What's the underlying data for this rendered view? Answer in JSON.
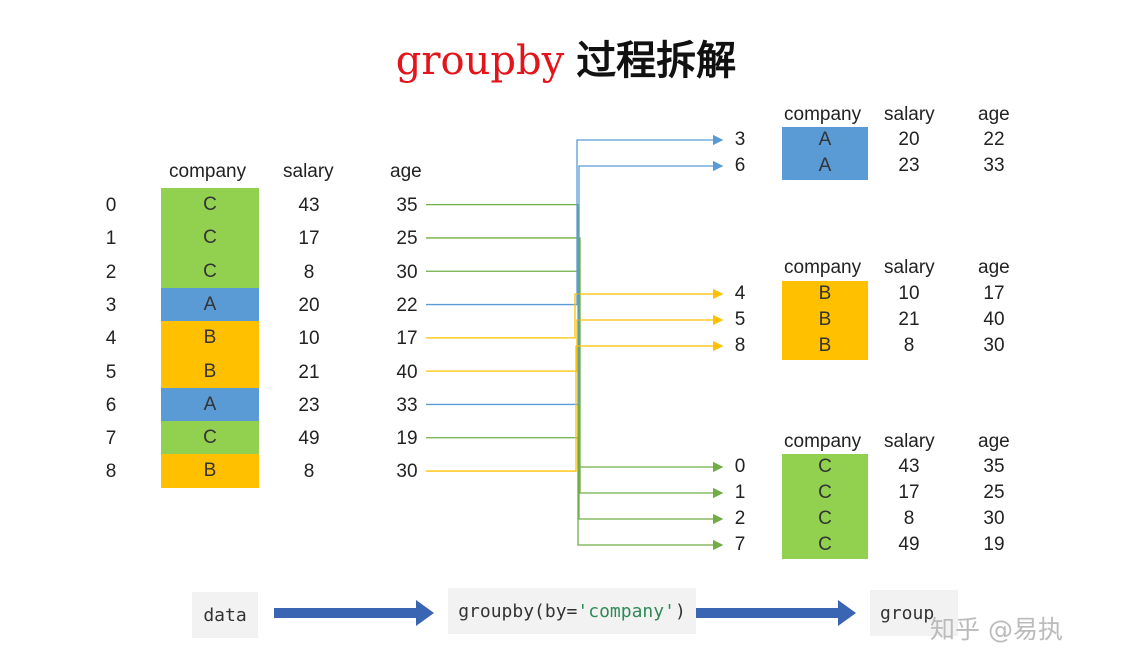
{
  "title": {
    "keyword": "groupby",
    "rest": "过程拆解"
  },
  "colors": {
    "A": "#5b9bd5",
    "B": "#ffc000",
    "C": "#92d050",
    "blue_arrow": "#3a65b3",
    "blue_line": "#5b9bd5",
    "yellow_line": "#ffc000",
    "green_line": "#70ad47"
  },
  "headers": {
    "company": "company",
    "salary": "salary",
    "age": "age"
  },
  "source_table": {
    "rows": [
      {
        "index": "0",
        "company": "C",
        "salary": "43",
        "age": "35"
      },
      {
        "index": "1",
        "company": "C",
        "salary": "17",
        "age": "25"
      },
      {
        "index": "2",
        "company": "C",
        "salary": "8",
        "age": "30"
      },
      {
        "index": "3",
        "company": "A",
        "salary": "20",
        "age": "22"
      },
      {
        "index": "4",
        "company": "B",
        "salary": "10",
        "age": "17"
      },
      {
        "index": "5",
        "company": "B",
        "salary": "21",
        "age": "40"
      },
      {
        "index": "6",
        "company": "A",
        "salary": "23",
        "age": "33"
      },
      {
        "index": "7",
        "company": "C",
        "salary": "49",
        "age": "19"
      },
      {
        "index": "8",
        "company": "B",
        "salary": "8",
        "age": "30"
      }
    ]
  },
  "groups": [
    {
      "key": "A",
      "rows": [
        {
          "index": "3",
          "company": "A",
          "salary": "20",
          "age": "22"
        },
        {
          "index": "6",
          "company": "A",
          "salary": "23",
          "age": "33"
        }
      ]
    },
    {
      "key": "B",
      "rows": [
        {
          "index": "4",
          "company": "B",
          "salary": "10",
          "age": "17"
        },
        {
          "index": "5",
          "company": "B",
          "salary": "21",
          "age": "40"
        },
        {
          "index": "8",
          "company": "B",
          "salary": "8",
          "age": "30"
        }
      ]
    },
    {
      "key": "C",
      "rows": [
        {
          "index": "0",
          "company": "C",
          "salary": "43",
          "age": "35"
        },
        {
          "index": "1",
          "company": "C",
          "salary": "17",
          "age": "25"
        },
        {
          "index": "2",
          "company": "C",
          "salary": "8",
          "age": "30"
        },
        {
          "index": "7",
          "company": "C",
          "salary": "49",
          "age": "19"
        }
      ]
    }
  ],
  "flow": {
    "data_label": "data",
    "groupby_prefix": "groupby(by=",
    "groupby_arg": "'company'",
    "groupby_suffix": ")",
    "result_label": "group"
  },
  "watermark": "知乎 @易执"
}
